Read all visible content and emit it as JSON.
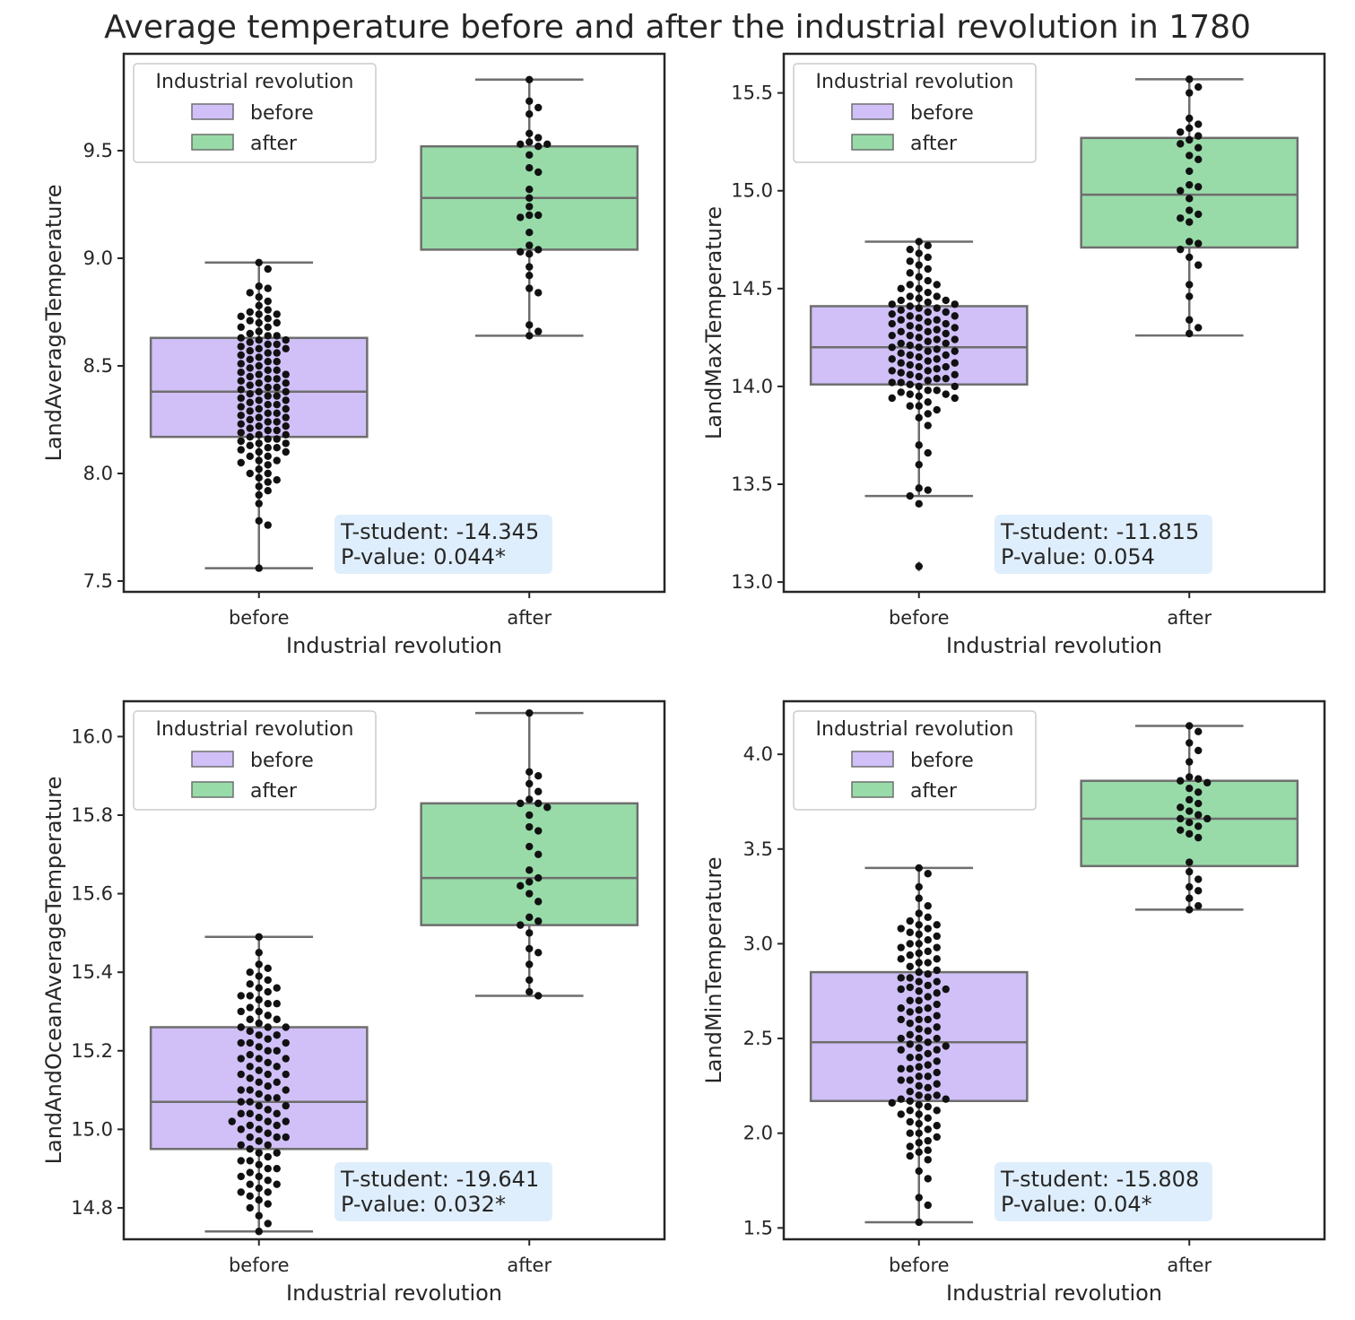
{
  "title": "Average temperature before and after the industrial revolution in 1780",
  "colors": {
    "before": "#d0c0f7",
    "after": "#98dba9",
    "box_edge": "#6e6e6e",
    "point": "#111111",
    "stat_box": "#dfeefc"
  },
  "chart_data": [
    {
      "type": "box",
      "xlabel": "Industrial revolution",
      "ylabel": "LandAverageTemperature",
      "categories": [
        "before",
        "after"
      ],
      "ylim": [
        7.45,
        9.95
      ],
      "yticks": [
        7.5,
        8.0,
        8.5,
        9.0,
        9.5
      ],
      "yticklabels": [
        "7.5",
        "8.0",
        "8.5",
        "9.0",
        "9.5"
      ],
      "legend": {
        "title": "Industrial revolution",
        "entries": [
          "before",
          "after"
        ],
        "location": "upper left"
      },
      "stats": {
        "t_line": "T-student: -14.345",
        "p_line": "P-value: 0.044*"
      },
      "boxes": [
        {
          "q1": 8.17,
          "median": 8.38,
          "q3": 8.63,
          "whislo": 7.56,
          "whishi": 8.98,
          "fliers": []
        },
        {
          "q1": 9.04,
          "median": 9.28,
          "q3": 9.52,
          "whislo": 8.64,
          "whishi": 9.83,
          "fliers": []
        }
      ],
      "points": [
        [
          7.56,
          7.76,
          7.78,
          7.86,
          7.9,
          7.92,
          7.94,
          7.96,
          7.97,
          7.98,
          8.0,
          8.02,
          8.04,
          8.05,
          8.06,
          8.08,
          8.1,
          8.11,
          8.12,
          8.13,
          8.14,
          8.15,
          8.16,
          8.17,
          8.18,
          8.19,
          8.2,
          8.21,
          8.22,
          8.23,
          8.24,
          8.25,
          8.26,
          8.27,
          8.28,
          8.29,
          8.3,
          8.31,
          8.32,
          8.33,
          8.34,
          8.35,
          8.36,
          8.37,
          8.38,
          8.38,
          8.39,
          8.4,
          8.41,
          8.42,
          8.43,
          8.44,
          8.45,
          8.46,
          8.47,
          8.48,
          8.49,
          8.5,
          8.51,
          8.52,
          8.53,
          8.54,
          8.55,
          8.56,
          8.57,
          8.58,
          8.59,
          8.6,
          8.6,
          8.61,
          8.62,
          8.63,
          8.64,
          8.65,
          8.66,
          8.68,
          8.7,
          8.71,
          8.72,
          8.73,
          8.74,
          8.75,
          8.76,
          8.78,
          8.8,
          8.82,
          8.84,
          8.86,
          8.87,
          8.95,
          8.98,
          8.52,
          8.44,
          8.36,
          8.28,
          8.2,
          8.12,
          8.06,
          8.0,
          8.58,
          8.64,
          8.7,
          8.34,
          8.26,
          8.18,
          8.1,
          8.48,
          8.56,
          8.4,
          8.32,
          8.24,
          8.16,
          8.08,
          8.62,
          8.68,
          8.74,
          8.46,
          8.42,
          8.3,
          8.22,
          8.14
        ],
        [
          8.64,
          8.66,
          8.69,
          8.84,
          8.86,
          8.92,
          8.96,
          9.02,
          9.03,
          9.04,
          9.06,
          9.12,
          9.19,
          9.2,
          9.2,
          9.24,
          9.28,
          9.32,
          9.4,
          9.42,
          9.48,
          9.52,
          9.53,
          9.53,
          9.54,
          9.56,
          9.58,
          9.67,
          9.7,
          9.73,
          9.83
        ]
      ]
    },
    {
      "type": "box",
      "xlabel": "Industrial revolution",
      "ylabel": "LandMaxTemperature",
      "categories": [
        "before",
        "after"
      ],
      "ylim": [
        12.95,
        15.7
      ],
      "yticks": [
        13.0,
        13.5,
        14.0,
        14.5,
        15.0,
        15.5
      ],
      "yticklabels": [
        "13.0",
        "13.5",
        "14.0",
        "14.5",
        "15.0",
        "15.5"
      ],
      "legend": {
        "title": "Industrial revolution",
        "entries": [
          "before",
          "after"
        ],
        "location": "upper left"
      },
      "stats": {
        "t_line": "T-student: -11.815",
        "p_line": "P-value: 0.054"
      },
      "boxes": [
        {
          "q1": 14.01,
          "median": 14.2,
          "q3": 14.41,
          "whislo": 13.44,
          "whishi": 14.74,
          "fliers": [
            13.08
          ]
        },
        {
          "q1": 14.71,
          "median": 14.98,
          "q3": 15.27,
          "whislo": 14.26,
          "whishi": 15.57,
          "fliers": []
        }
      ],
      "points": [
        [
          13.08,
          13.4,
          13.44,
          13.47,
          13.48,
          13.6,
          13.66,
          13.7,
          13.8,
          13.84,
          13.86,
          13.88,
          13.9,
          13.92,
          13.94,
          13.95,
          13.96,
          13.97,
          13.98,
          14.0,
          14.01,
          14.02,
          14.03,
          14.04,
          14.05,
          14.06,
          14.07,
          14.08,
          14.09,
          14.1,
          14.11,
          14.12,
          14.13,
          14.14,
          14.15,
          14.16,
          14.17,
          14.18,
          14.19,
          14.2,
          14.2,
          14.21,
          14.22,
          14.23,
          14.24,
          14.25,
          14.26,
          14.27,
          14.28,
          14.29,
          14.3,
          14.31,
          14.32,
          14.33,
          14.34,
          14.35,
          14.36,
          14.37,
          14.38,
          14.39,
          14.4,
          14.41,
          14.42,
          14.43,
          14.44,
          14.45,
          14.46,
          14.48,
          14.5,
          14.52,
          14.54,
          14.56,
          14.58,
          14.6,
          14.62,
          14.64,
          14.66,
          14.68,
          14.7,
          14.72,
          14.74,
          14.0,
          14.06,
          14.12,
          14.18,
          14.24,
          14.3,
          14.36,
          14.42,
          13.9,
          13.96,
          14.02,
          14.08,
          14.14,
          14.22,
          14.28,
          14.34,
          14.4,
          14.46,
          14.52,
          14.04,
          14.1,
          14.16,
          14.26,
          14.32,
          14.38,
          13.94,
          13.98,
          14.44,
          14.5
        ],
        [
          14.27,
          14.3,
          14.34,
          14.46,
          14.52,
          14.62,
          14.66,
          14.7,
          14.73,
          14.74,
          14.84,
          14.86,
          14.88,
          14.9,
          14.96,
          15.0,
          15.02,
          15.03,
          15.1,
          15.16,
          15.18,
          15.22,
          15.24,
          15.26,
          15.28,
          15.3,
          15.32,
          15.34,
          15.37,
          15.5,
          15.53,
          15.57
        ]
      ]
    },
    {
      "type": "box",
      "xlabel": "Industrial revolution",
      "ylabel": "LandAndOceanAverageTemperature",
      "categories": [
        "before",
        "after"
      ],
      "ylim": [
        14.72,
        16.09
      ],
      "yticks": [
        14.8,
        15.0,
        15.2,
        15.4,
        15.6,
        15.8,
        16.0
      ],
      "yticklabels": [
        "14.8",
        "15.0",
        "15.2",
        "15.4",
        "15.6",
        "15.8",
        "16.0"
      ],
      "legend": {
        "title": "Industrial revolution",
        "entries": [
          "before",
          "after"
        ],
        "location": "upper left"
      },
      "stats": {
        "t_line": "T-student: -19.641",
        "p_line": "P-value: 0.032*"
      },
      "boxes": [
        {
          "q1": 14.95,
          "median": 15.07,
          "q3": 15.26,
          "whislo": 14.74,
          "whishi": 15.49,
          "fliers": []
        },
        {
          "q1": 15.52,
          "median": 15.64,
          "q3": 15.83,
          "whislo": 15.34,
          "whishi": 16.06,
          "fliers": []
        }
      ],
      "points": [
        [
          14.74,
          14.76,
          14.78,
          14.8,
          14.81,
          14.82,
          14.83,
          14.84,
          14.85,
          14.86,
          14.87,
          14.88,
          14.89,
          14.9,
          14.91,
          14.92,
          14.93,
          14.94,
          14.95,
          14.96,
          14.97,
          14.98,
          14.99,
          15.0,
          15.01,
          15.01,
          15.02,
          15.03,
          15.04,
          15.05,
          15.06,
          15.07,
          15.07,
          15.08,
          15.09,
          15.1,
          15.11,
          15.12,
          15.13,
          15.14,
          15.15,
          15.16,
          15.17,
          15.18,
          15.19,
          15.2,
          15.21,
          15.22,
          15.23,
          15.24,
          15.25,
          15.26,
          15.27,
          15.28,
          15.29,
          15.3,
          15.31,
          15.32,
          15.33,
          15.34,
          15.35,
          15.36,
          15.37,
          15.38,
          15.39,
          15.4,
          15.41,
          15.42,
          15.45,
          15.49,
          14.9,
          14.94,
          14.98,
          15.02,
          15.06,
          15.1,
          15.14,
          15.18,
          15.22,
          15.26,
          15.3,
          15.34,
          14.86,
          14.92,
          14.96,
          15.0,
          15.04,
          15.08,
          15.12,
          15.16,
          15.2,
          15.24,
          15.28,
          15.32,
          15.36,
          14.88,
          15.04,
          15.1,
          15.18,
          15.22,
          14.84,
          14.98,
          15.02,
          15.14,
          15.26
        ],
        [
          15.34,
          15.35,
          15.38,
          15.42,
          15.45,
          15.46,
          15.5,
          15.52,
          15.53,
          15.54,
          15.58,
          15.6,
          15.62,
          15.63,
          15.64,
          15.66,
          15.7,
          15.72,
          15.76,
          15.77,
          15.8,
          15.82,
          15.83,
          15.83,
          15.84,
          15.86,
          15.88,
          15.9,
          15.91,
          16.06
        ]
      ]
    },
    {
      "type": "box",
      "xlabel": "Industrial revolution",
      "ylabel": "LandMinTemperature",
      "categories": [
        "before",
        "after"
      ],
      "ylim": [
        1.44,
        4.28
      ],
      "yticks": [
        1.5,
        2.0,
        2.5,
        3.0,
        3.5,
        4.0
      ],
      "yticklabels": [
        "1.5",
        "2.0",
        "2.5",
        "3.0",
        "3.5",
        "4.0"
      ],
      "legend": {
        "title": "Industrial revolution",
        "entries": [
          "before",
          "after"
        ],
        "location": "upper left"
      },
      "stats": {
        "t_line": "T-student: -15.808",
        "p_line": "P-value: 0.04*"
      },
      "boxes": [
        {
          "q1": 2.17,
          "median": 2.48,
          "q3": 2.85,
          "whislo": 1.53,
          "whishi": 3.4,
          "fliers": []
        },
        {
          "q1": 3.41,
          "median": 3.66,
          "q3": 3.86,
          "whislo": 3.18,
          "whishi": 4.15,
          "fliers": []
        }
      ],
      "points": [
        [
          1.53,
          1.62,
          1.66,
          1.76,
          1.8,
          1.86,
          1.88,
          1.9,
          1.91,
          1.93,
          1.96,
          1.98,
          2.0,
          2.02,
          2.04,
          2.06,
          2.08,
          2.1,
          2.12,
          2.14,
          2.16,
          2.17,
          2.18,
          2.19,
          2.2,
          2.22,
          2.24,
          2.26,
          2.28,
          2.3,
          2.32,
          2.34,
          2.36,
          2.38,
          2.4,
          2.42,
          2.44,
          2.46,
          2.47,
          2.48,
          2.5,
          2.52,
          2.54,
          2.56,
          2.58,
          2.6,
          2.62,
          2.64,
          2.66,
          2.68,
          2.7,
          2.72,
          2.74,
          2.76,
          2.77,
          2.78,
          2.8,
          2.82,
          2.84,
          2.86,
          2.88,
          2.9,
          2.92,
          2.94,
          2.96,
          2.98,
          3.0,
          3.02,
          3.04,
          3.06,
          3.08,
          3.1,
          3.12,
          3.14,
          3.16,
          3.2,
          3.24,
          3.3,
          3.37,
          3.4,
          2.0,
          2.1,
          2.2,
          2.3,
          2.4,
          2.5,
          2.6,
          2.7,
          2.8,
          2.9,
          3.0,
          3.1,
          2.05,
          2.15,
          2.25,
          2.35,
          2.45,
          2.55,
          2.65,
          2.75,
          2.85,
          2.95,
          3.05,
          1.95,
          2.12,
          2.28,
          2.44,
          2.6,
          2.76,
          2.92,
          3.08,
          2.18,
          2.34,
          2.5,
          2.66,
          2.82,
          2.98
        ],
        [
          3.18,
          3.2,
          3.24,
          3.28,
          3.3,
          3.34,
          3.38,
          3.43,
          3.56,
          3.58,
          3.6,
          3.62,
          3.64,
          3.66,
          3.66,
          3.68,
          3.7,
          3.72,
          3.74,
          3.76,
          3.8,
          3.82,
          3.85,
          3.86,
          3.87,
          3.88,
          3.96,
          4.02,
          4.06,
          4.12,
          4.15
        ]
      ]
    }
  ]
}
